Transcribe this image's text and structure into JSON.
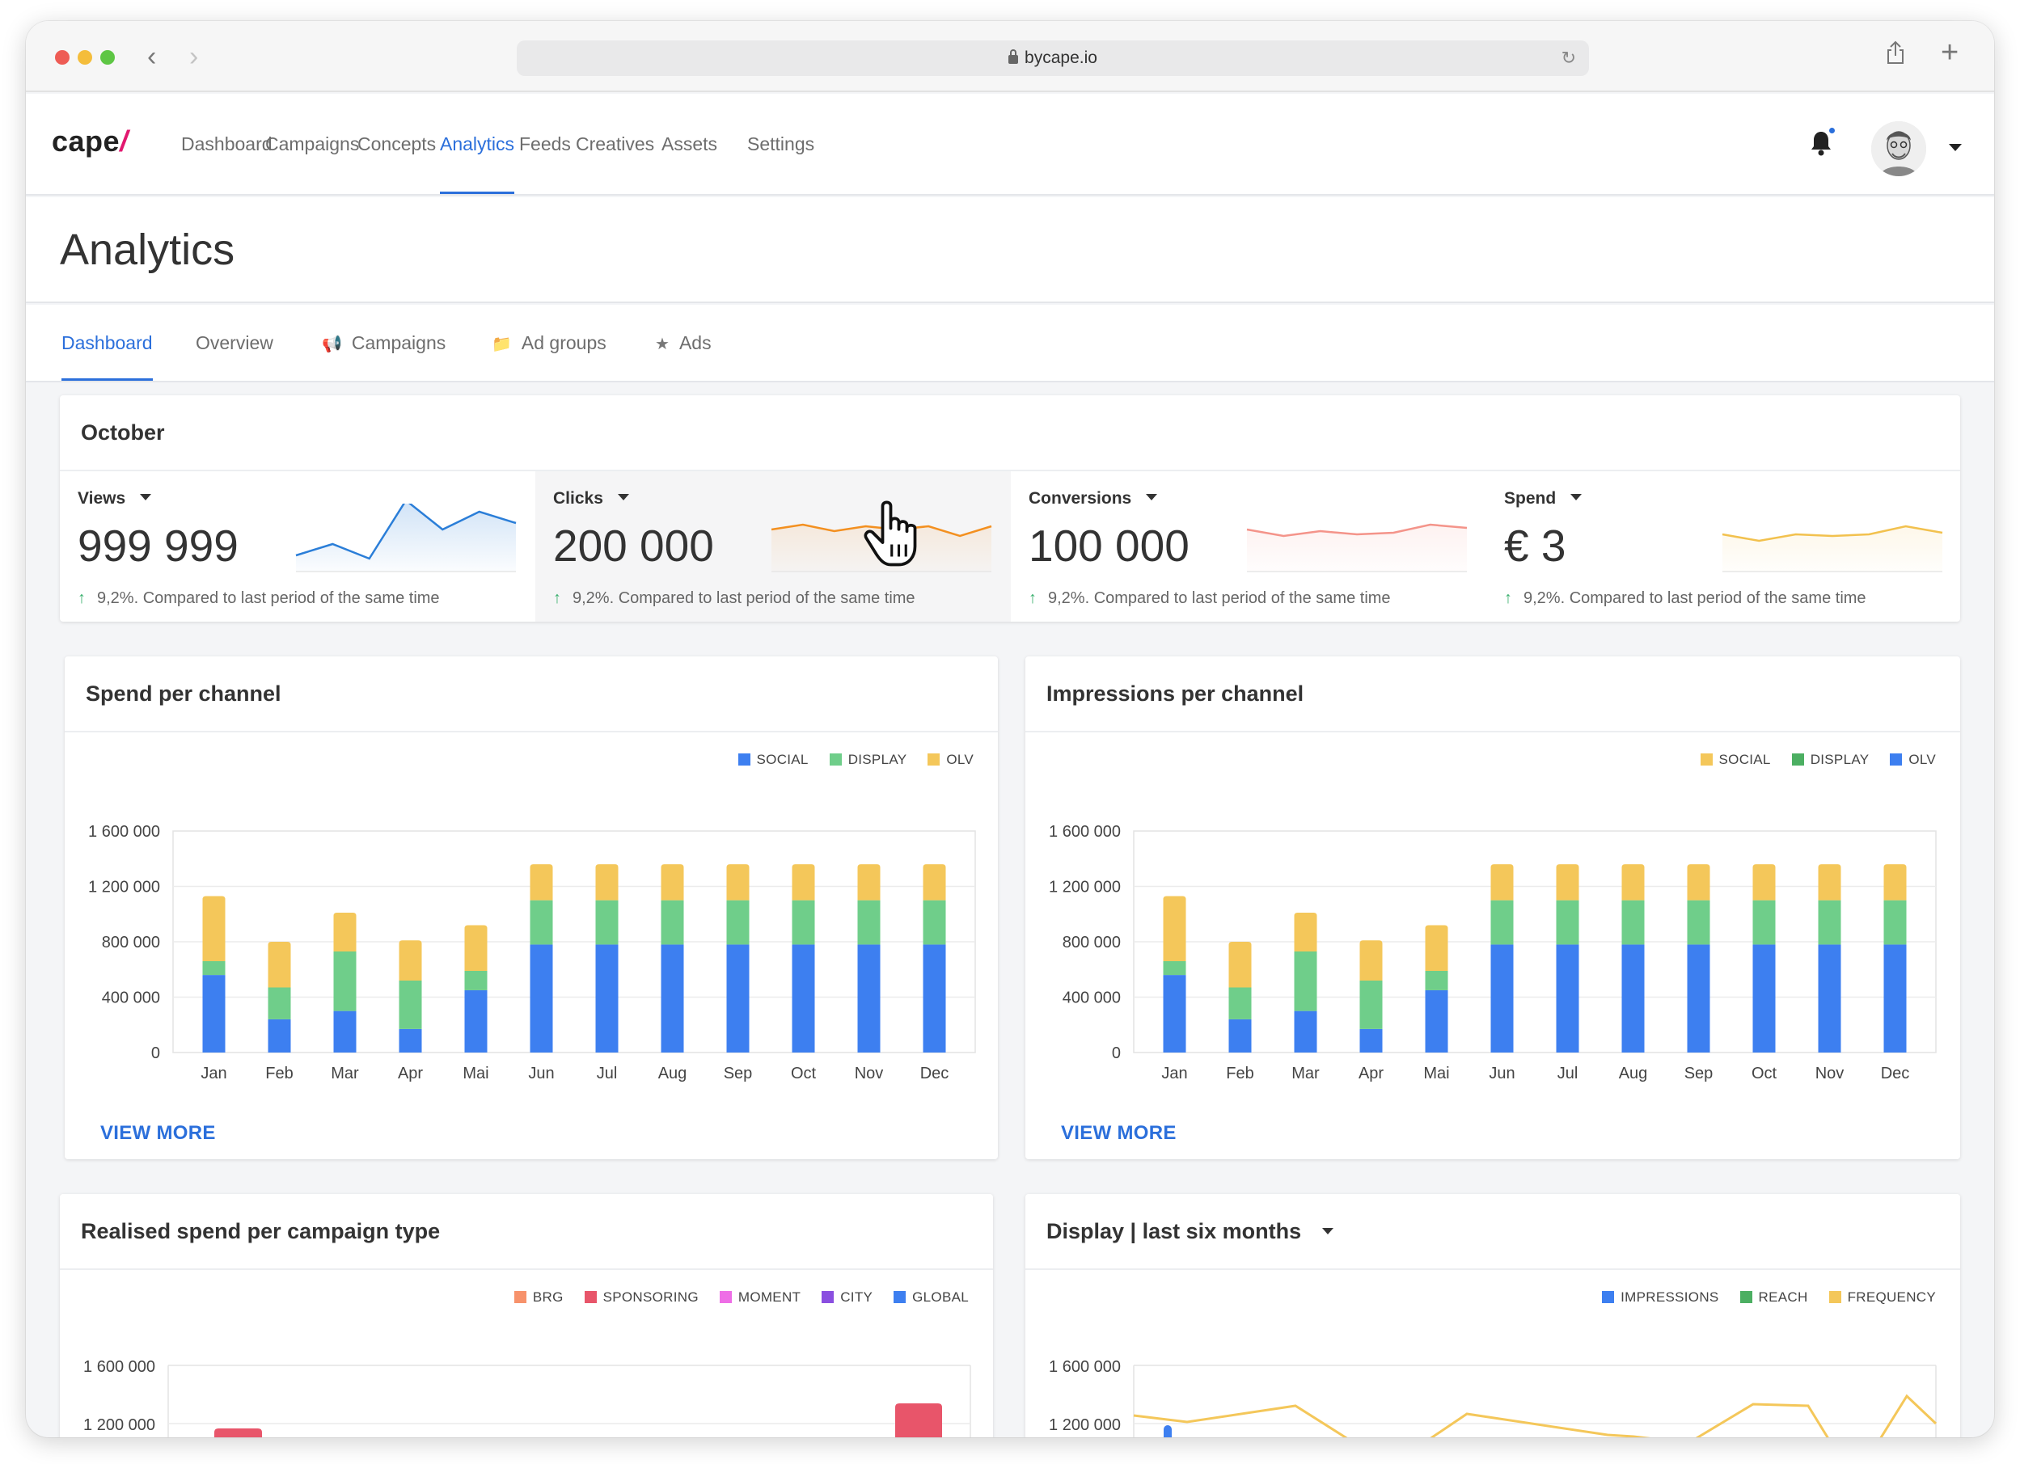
{
  "browser": {
    "url": "bycape.io"
  },
  "app": {
    "logo": "cape",
    "logo_mark": "/",
    "nav": [
      "Dashboard",
      "Campaigns",
      "Concepts",
      "Analytics",
      "Feeds",
      "Creatives",
      "Assets",
      "Settings"
    ],
    "active_nav": "Analytics"
  },
  "page": {
    "title": "Analytics",
    "tabs": [
      "Dashboard",
      "Overview",
      "Campaigns",
      "Ad groups",
      "Ads"
    ],
    "active_tab": "Dashboard"
  },
  "summary": {
    "title": "October",
    "kpis": [
      {
        "label": "Views",
        "value": "999 999",
        "compare": "9,2%. Compared to last period of the same time",
        "color": "#2b7ed8",
        "trend": [
          20,
          34,
          16,
          88,
          52,
          74,
          60
        ]
      },
      {
        "label": "Clicks",
        "value": "200 000",
        "compare": "9,2%. Compared to last period of the same time",
        "color": "#f39020",
        "trend": [
          52,
          58,
          50,
          56,
          52,
          56,
          44,
          56
        ]
      },
      {
        "label": "Conversions",
        "value": "100 000",
        "compare": "9,2%. Compared to last period of the same time",
        "color": "#f4948a",
        "trend": [
          52,
          44,
          50,
          46,
          48,
          58,
          54
        ]
      },
      {
        "label": "Spend",
        "value": "€ 3",
        "compare": "9,2%. Compared to last period of the same time",
        "color": "#f2c14e",
        "trend": [
          46,
          38,
          46,
          44,
          46,
          56,
          48
        ]
      }
    ]
  },
  "cards": {
    "spend_per_channel": {
      "title": "Spend per channel",
      "view_more": "VIEW MORE"
    },
    "impressions_per_channel": {
      "title": "Impressions per channel",
      "view_more": "VIEW MORE"
    },
    "realised_spend": {
      "title": "Realised spend per campaign type"
    },
    "display": {
      "title": "Display | last six months"
    }
  },
  "chart_data": [
    {
      "type": "bar",
      "stacked": true,
      "title": "Spend per channel",
      "categories": [
        "Jan",
        "Feb",
        "Mar",
        "Apr",
        "Mai",
        "Jun",
        "Jul",
        "Aug",
        "Sep",
        "Oct",
        "Nov",
        "Dec"
      ],
      "ylim": [
        0,
        1600000
      ],
      "yticks": [
        "0",
        "400 000",
        "800 000",
        "1 200 000",
        "1 600 000"
      ],
      "legend_position": "top-right",
      "series": [
        {
          "name": "SOCIAL",
          "color": "#3d7ff0",
          "values": [
            560000,
            240000,
            300000,
            170000,
            450000,
            780000,
            780000,
            780000,
            780000,
            780000,
            780000,
            780000
          ]
        },
        {
          "name": "DISPLAY",
          "color": "#6fce8a",
          "values": [
            100000,
            230000,
            430000,
            350000,
            140000,
            320000,
            320000,
            320000,
            320000,
            320000,
            320000,
            320000
          ]
        },
        {
          "name": "OLV",
          "color": "#f4c75a",
          "values": [
            470000,
            330000,
            280000,
            290000,
            330000,
            260000,
            260000,
            260000,
            260000,
            260000,
            260000,
            260000
          ]
        }
      ]
    },
    {
      "type": "bar",
      "stacked": true,
      "title": "Impressions per channel",
      "categories": [
        "Jan",
        "Feb",
        "Mar",
        "Apr",
        "Mai",
        "Jun",
        "Jul",
        "Aug",
        "Sep",
        "Oct",
        "Nov",
        "Dec"
      ],
      "ylim": [
        0,
        1600000
      ],
      "yticks": [
        "0",
        "400 000",
        "800 000",
        "1 200 000",
        "1 600 000"
      ],
      "legend_position": "top-right",
      "legend": [
        {
          "name": "SOCIAL",
          "color": "#f4c75a"
        },
        {
          "name": "DISPLAY",
          "color": "#4caf62"
        },
        {
          "name": "OLV",
          "color": "#3d7ff0"
        }
      ],
      "series": [
        {
          "name": "OLV",
          "color": "#3d7ff0",
          "values": [
            560000,
            240000,
            300000,
            170000,
            450000,
            780000,
            780000,
            780000,
            780000,
            780000,
            780000,
            780000
          ]
        },
        {
          "name": "DISPLAY",
          "color": "#6fce8a",
          "values": [
            100000,
            230000,
            430000,
            350000,
            140000,
            320000,
            320000,
            320000,
            320000,
            320000,
            320000,
            320000
          ]
        },
        {
          "name": "SOCIAL",
          "color": "#f4c75a",
          "values": [
            470000,
            330000,
            280000,
            290000,
            330000,
            260000,
            260000,
            260000,
            260000,
            260000,
            260000,
            260000
          ]
        }
      ]
    },
    {
      "type": "bar",
      "stacked": true,
      "title": "Realised spend per campaign type",
      "yticks": [
        "1 600 000",
        "1 200 000"
      ],
      "legend_position": "top-right",
      "legend": [
        {
          "name": "BRG",
          "color": "#f7926b"
        },
        {
          "name": "SPONSORING",
          "color": "#e8556a"
        },
        {
          "name": "MOMENT",
          "color": "#ee6ee6"
        },
        {
          "name": "CITY",
          "color": "#8a4fe0"
        },
        {
          "name": "GLOBAL",
          "color": "#3d7ff0"
        }
      ]
    },
    {
      "type": "line",
      "title": "Display | last six months",
      "yticks": [
        "1 600 000",
        "1 200 000"
      ],
      "legend_position": "top-right",
      "legend": [
        {
          "name": "IMPRESSIONS",
          "color": "#3d7ff0"
        },
        {
          "name": "REACH",
          "color": "#4caf62"
        },
        {
          "name": "FREQUENCY",
          "color": "#f4c75a"
        }
      ]
    }
  ]
}
